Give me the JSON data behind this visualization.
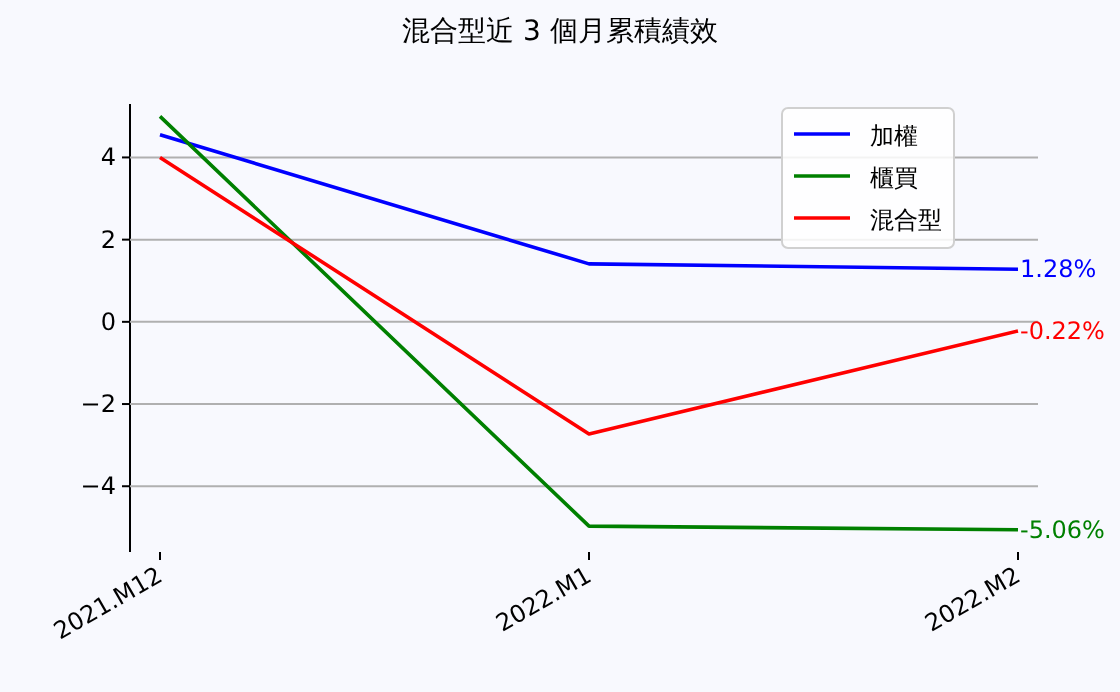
{
  "chart_data": {
    "type": "line",
    "title": "混合型近 3 個月累積績效",
    "categories": [
      "2021.M12",
      "2022.M1",
      "2022.M2"
    ],
    "series": [
      {
        "name": "加權",
        "color": "#0000ff",
        "values": [
          4.55,
          1.41,
          1.28
        ],
        "value_labels": [
          null,
          null,
          "1.28%"
        ]
      },
      {
        "name": "櫃買",
        "color": "#008000",
        "values": [
          5.0,
          -4.97,
          -5.06
        ],
        "value_labels": [
          null,
          null,
          "-5.06%"
        ]
      },
      {
        "name": "混合型",
        "color": "#ff0000",
        "values": [
          4.0,
          -2.73,
          -0.22
        ],
        "value_labels": [
          null,
          null,
          "-0.22%"
        ]
      }
    ],
    "ylim": [
      -5.6,
      5.3
    ],
    "yticks": [
      -4,
      -2,
      0,
      2,
      4
    ],
    "grid": "y",
    "legend": "top right"
  }
}
